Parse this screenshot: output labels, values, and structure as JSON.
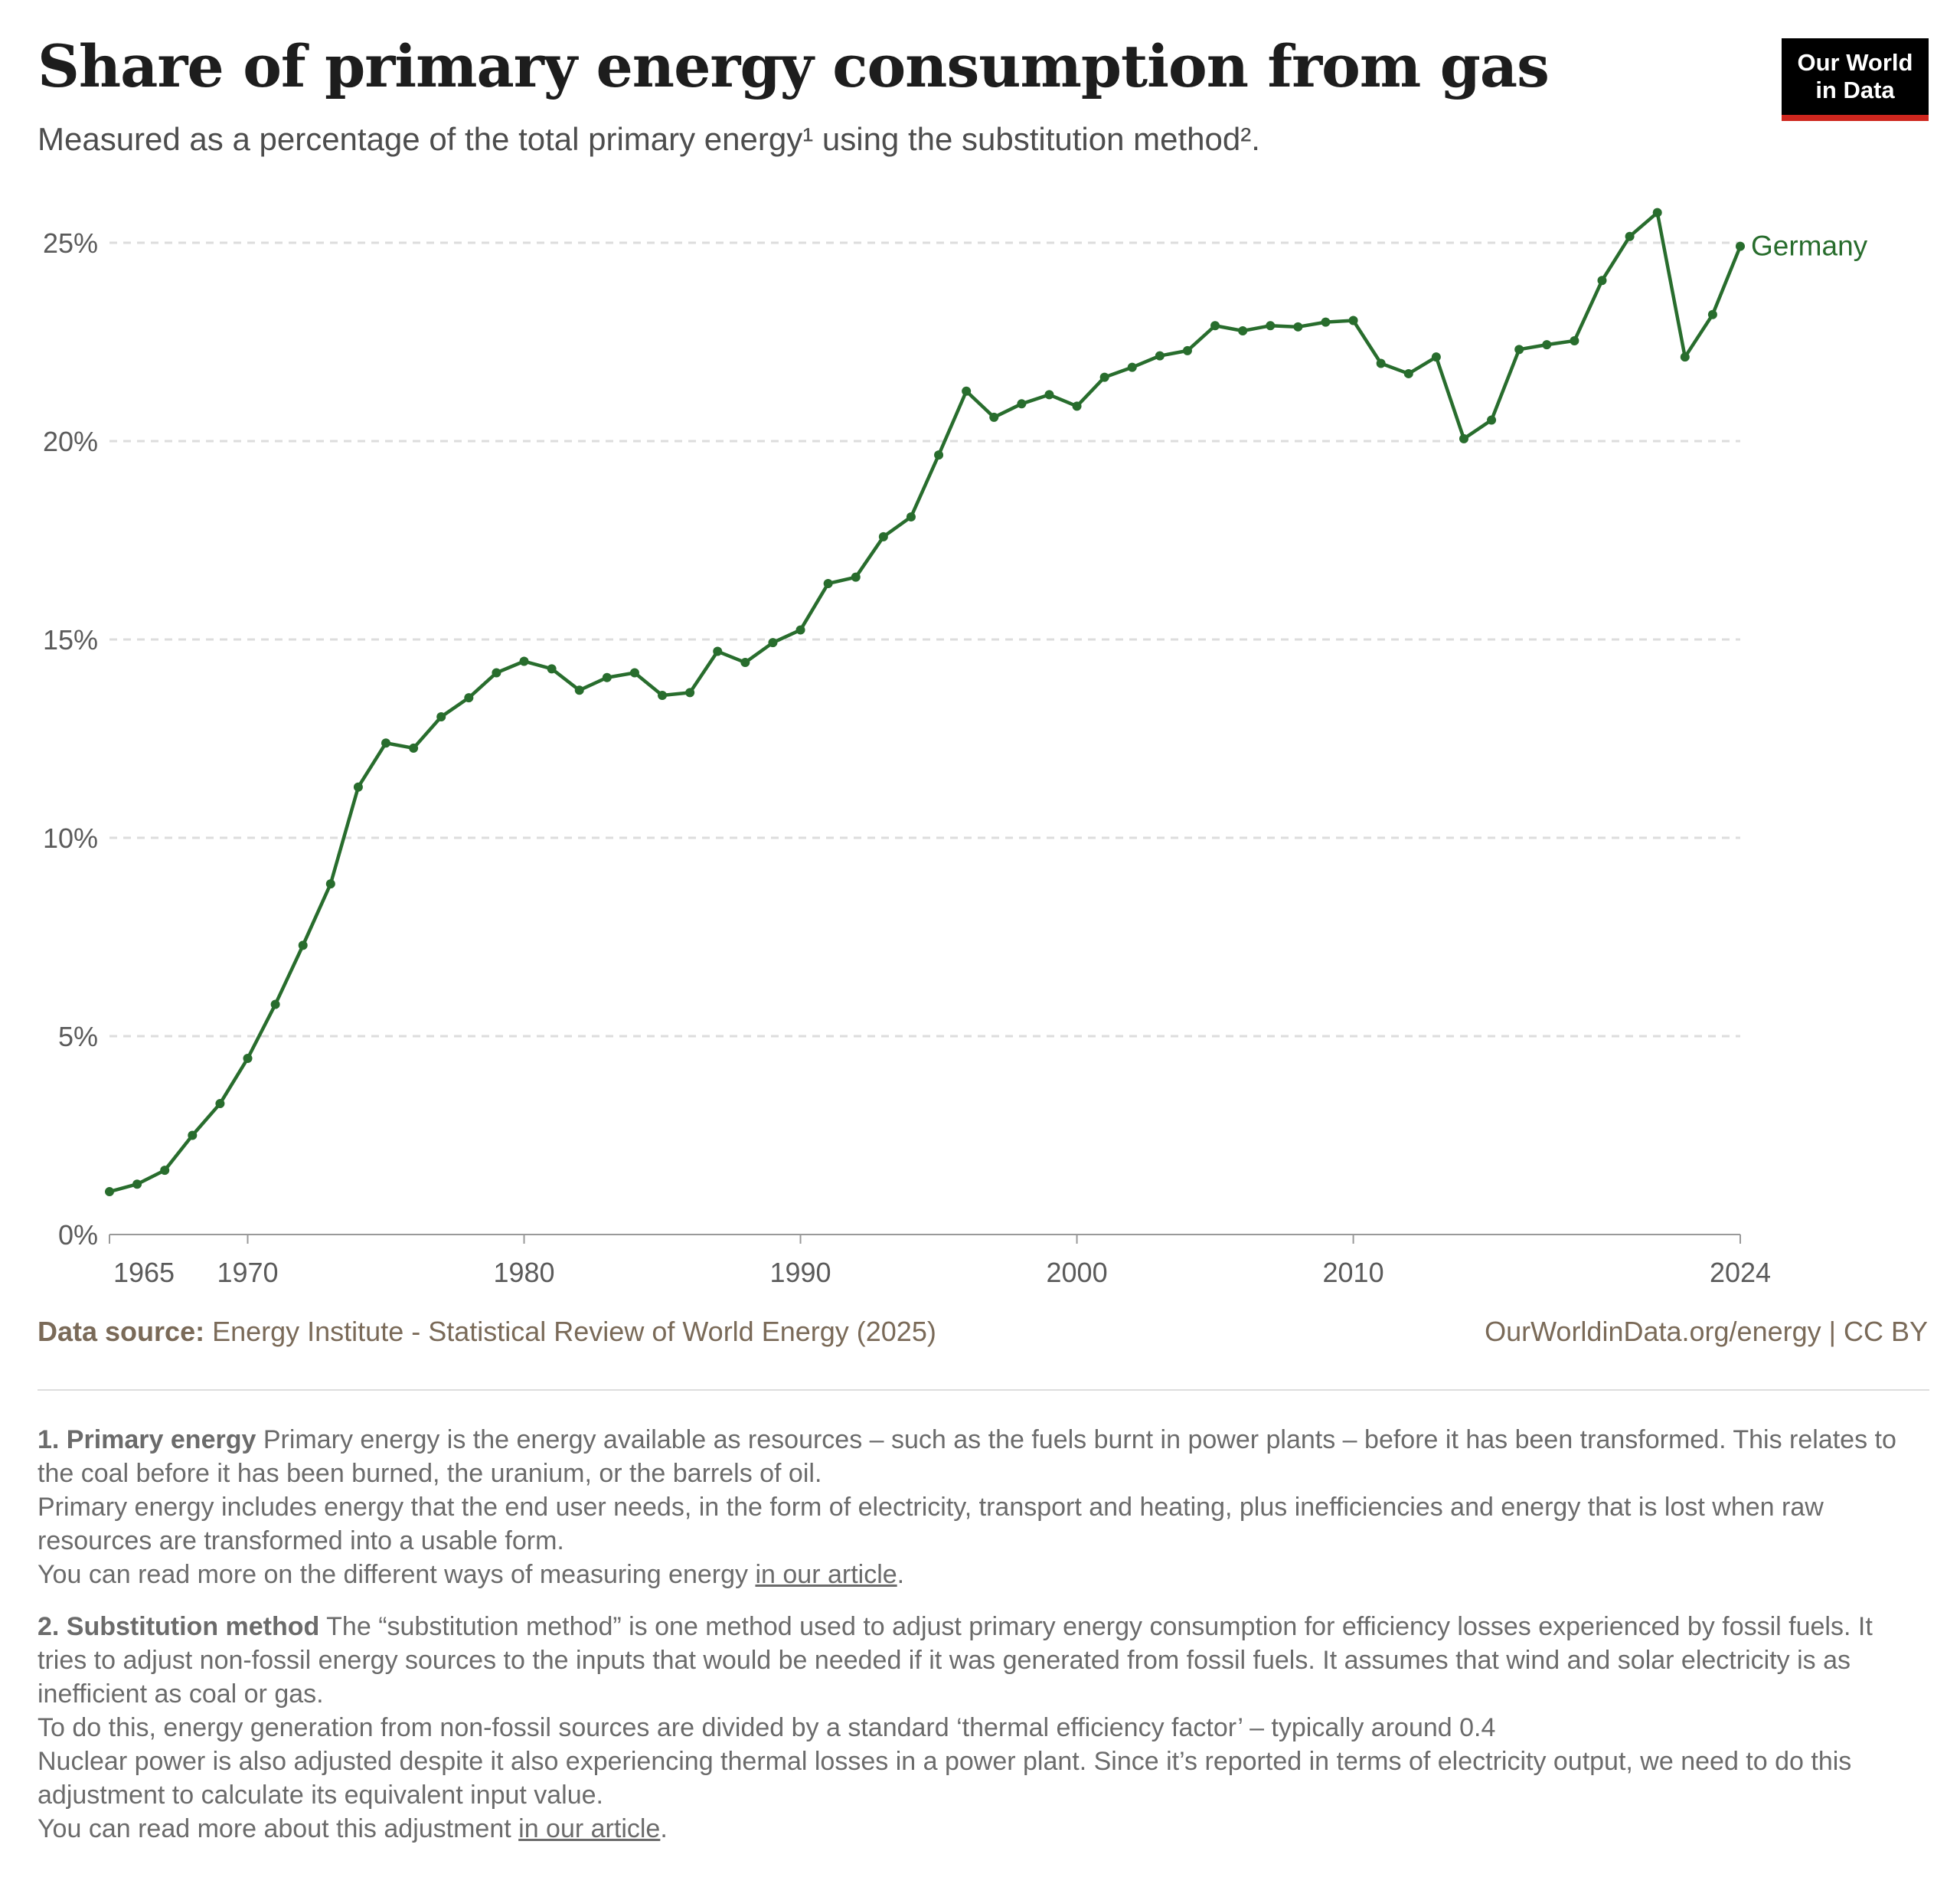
{
  "header": {
    "title": "Share of primary energy consumption from gas",
    "subtitle": "Measured as a percentage of the total primary energy¹ using the substitution method².",
    "logo_line1": "Our World",
    "logo_line2": "in Data"
  },
  "chart_data": {
    "type": "line",
    "title": "Share of primary energy consumption from gas",
    "xlabel": "",
    "ylabel": "",
    "ylim": [
      0,
      25
    ],
    "xlim": [
      1965,
      2024
    ],
    "y_ticks": [
      {
        "v": 0,
        "label": "0%"
      },
      {
        "v": 5,
        "label": "5%"
      },
      {
        "v": 10,
        "label": "10%"
      },
      {
        "v": 15,
        "label": "15%"
      },
      {
        "v": 20,
        "label": "20%"
      },
      {
        "v": 25,
        "label": "25%"
      }
    ],
    "x_ticks": [
      {
        "v": 1965,
        "label": "1965"
      },
      {
        "v": 1970,
        "label": "1970"
      },
      {
        "v": 1980,
        "label": "1980"
      },
      {
        "v": 1990,
        "label": "1990"
      },
      {
        "v": 2000,
        "label": "2000"
      },
      {
        "v": 2010,
        "label": "2010"
      },
      {
        "v": 2024,
        "label": "2024"
      }
    ],
    "grid": true,
    "legend": "end-of-line label",
    "series": [
      {
        "name": "Germany",
        "color": "#286d2d",
        "x": [
          1965,
          1966,
          1967,
          1968,
          1969,
          1970,
          1971,
          1972,
          1973,
          1974,
          1975,
          1976,
          1977,
          1978,
          1979,
          1980,
          1981,
          1982,
          1983,
          1984,
          1985,
          1986,
          1987,
          1988,
          1989,
          1990,
          1991,
          1992,
          1993,
          1994,
          1995,
          1996,
          1997,
          1998,
          1999,
          2000,
          2001,
          2002,
          2003,
          2004,
          2005,
          2006,
          2007,
          2008,
          2009,
          2010,
          2011,
          2012,
          2013,
          2014,
          2015,
          2016,
          2017,
          2018,
          2019,
          2020,
          2021,
          2022,
          2023,
          2024
        ],
        "values": [
          1.08,
          1.27,
          1.62,
          2.5,
          3.3,
          4.44,
          5.8,
          7.29,
          8.84,
          11.28,
          12.39,
          12.26,
          13.05,
          13.53,
          14.16,
          14.45,
          14.26,
          13.72,
          14.04,
          14.16,
          13.59,
          13.66,
          14.7,
          14.42,
          14.92,
          15.24,
          16.41,
          16.57,
          17.59,
          18.09,
          19.65,
          21.26,
          20.6,
          20.94,
          21.17,
          20.88,
          21.61,
          21.86,
          22.15,
          22.28,
          22.91,
          22.78,
          22.91,
          22.88,
          23.0,
          23.04,
          21.96,
          21.7,
          22.12,
          20.06,
          20.53,
          22.31,
          22.43,
          22.53,
          24.05,
          25.16,
          25.76,
          22.12,
          23.19,
          24.91
        ]
      }
    ]
  },
  "footer": {
    "source_label": "Data source:",
    "source_text": "Energy Institute - Statistical Review of World Energy (2025)",
    "credit": "OurWorldinData.org/energy | CC BY"
  },
  "notes": {
    "n1_title": "1. Primary energy",
    "n1_l1": "Primary energy is the energy available as resources – such as the fuels burnt in power plants – before it has been transformed. This relates to the coal before it has been burned, the uranium, or the barrels of oil.",
    "n1_l2": "Primary energy includes energy that the end user needs, in the form of electricity, transport and heating, plus inefficiencies and energy that is lost when raw resources are transformed into a usable form.",
    "n1_l3": "You can read more on the different ways of measuring energy ",
    "n1_link": "in our article",
    "n2_title": "2. Substitution method",
    "n2_l1": "The “substitution method” is one method used to adjust primary energy consumption for efficiency losses experienced by fossil fuels. It tries to adjust non-fossil energy sources to the inputs that would be needed if it was generated from fossil fuels. It assumes that wind and solar electricity is as inefficient as coal or gas.",
    "n2_l2": "To do this, energy generation from non-fossil sources are divided by a standard ‘thermal efficiency factor’ – typically around 0.4",
    "n2_l3": "Nuclear power is also adjusted despite it also experiencing thermal losses in a power plant. Since it’s reported in terms of electricity output, we need to do this adjustment to calculate its equivalent input value.",
    "n2_l4": "You can read more about this adjustment ",
    "n2_link": "in our article",
    "period": "."
  }
}
